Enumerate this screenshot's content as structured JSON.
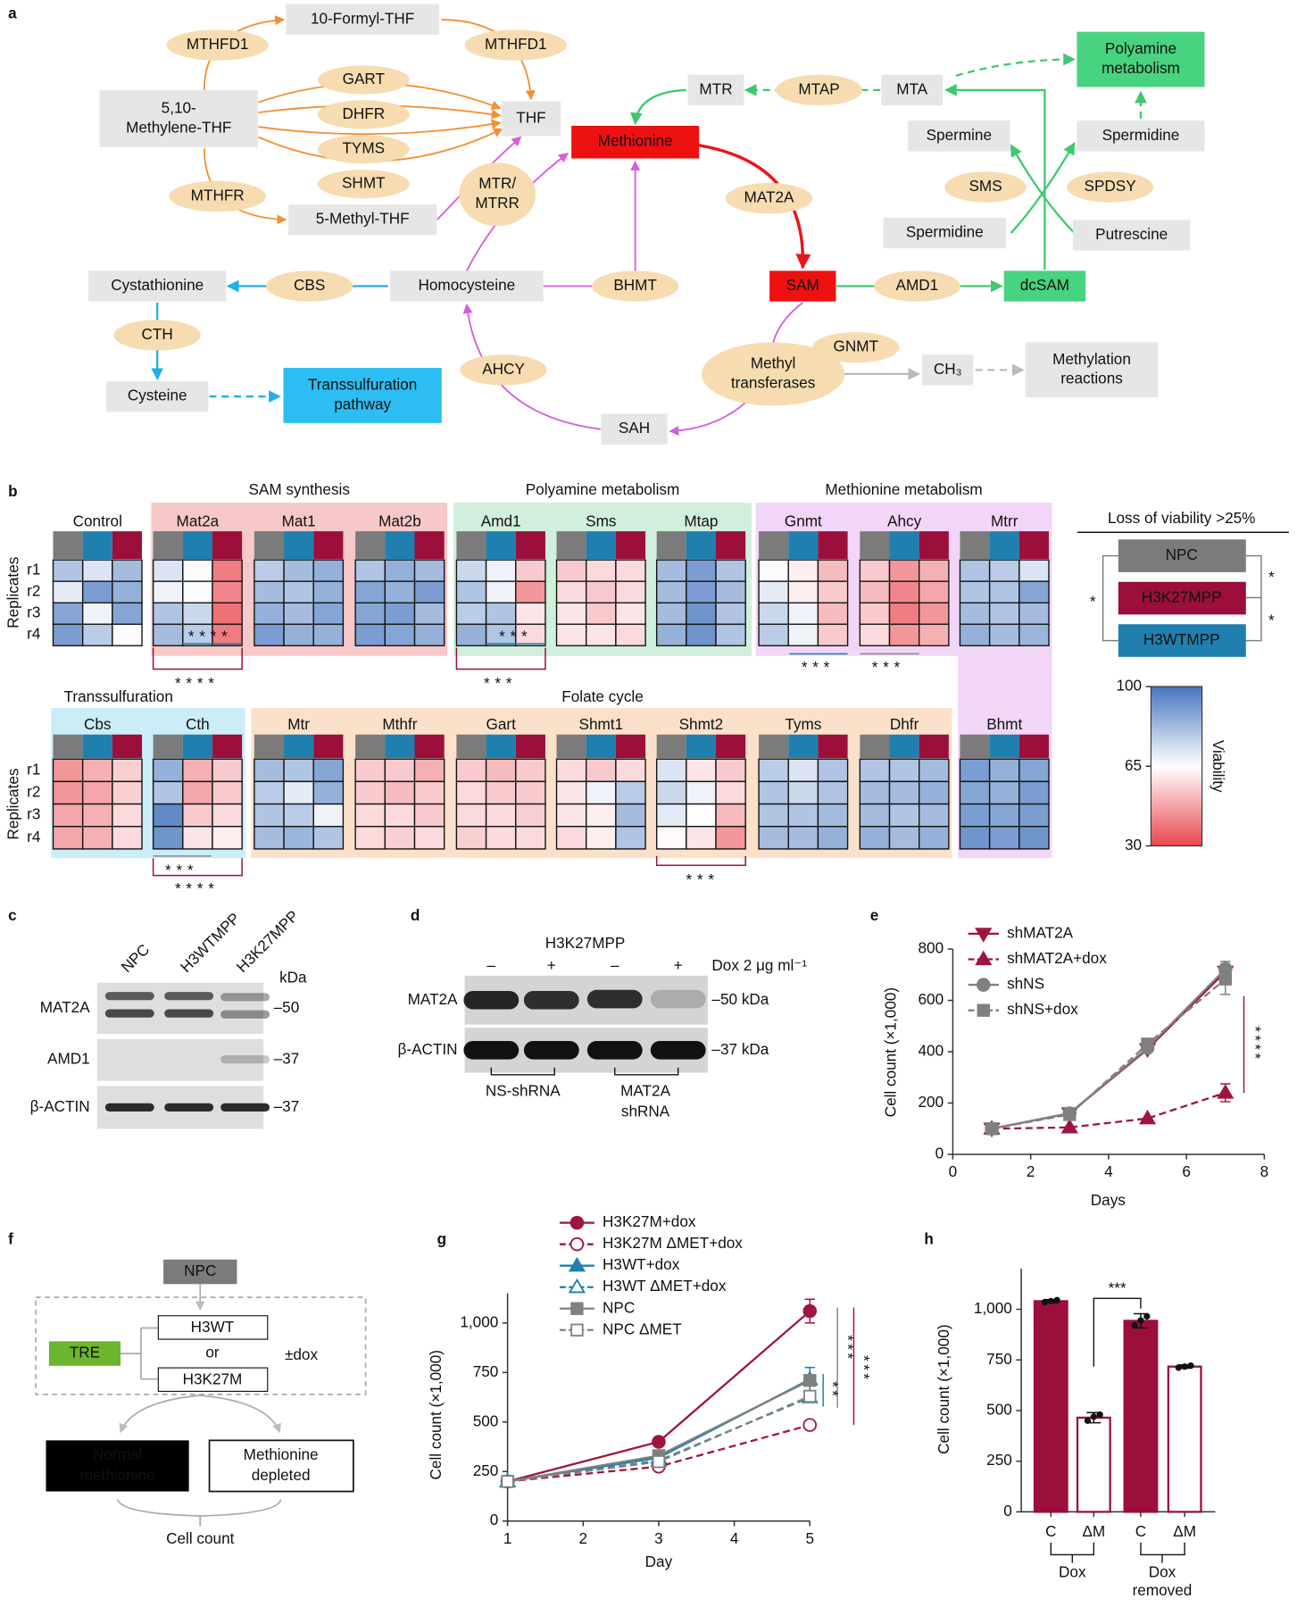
{
  "panel_labels": [
    "a",
    "b",
    "c",
    "d",
    "e",
    "f",
    "g",
    "h"
  ],
  "pathway": {
    "nodes": [
      {
        "lines": [
          "10-Formyl-THF"
        ]
      },
      {
        "lines": [
          "MTHFD1"
        ]
      },
      {
        "lines": [
          "MTHFD1"
        ]
      },
      {
        "lines": [
          "GART"
        ]
      },
      {
        "lines": [
          "5,10-",
          "Methylene-THF"
        ]
      },
      {
        "lines": [
          "DHFR"
        ]
      },
      {
        "lines": [
          "THF"
        ]
      },
      {
        "lines": [
          "TYMS"
        ]
      },
      {
        "lines": [
          "SHMT"
        ]
      },
      {
        "lines": [
          "MTHFR"
        ]
      },
      {
        "lines": [
          "5-Methyl-THF"
        ]
      },
      {
        "lines": [
          "MTR/",
          "MTRR"
        ]
      },
      {
        "lines": [
          "Methionine"
        ]
      },
      {
        "lines": [
          "MTR"
        ]
      },
      {
        "lines": [
          "MTAP"
        ]
      },
      {
        "lines": [
          "MTA"
        ]
      },
      {
        "lines": [
          "Polyamine",
          "metabolism"
        ]
      },
      {
        "lines": [
          "Spermine"
        ]
      },
      {
        "lines": [
          "Spermidine"
        ]
      },
      {
        "lines": [
          "MAT2A"
        ]
      },
      {
        "lines": [
          "SMS"
        ]
      },
      {
        "lines": [
          "SPDSY"
        ]
      },
      {
        "lines": [
          "Spermidine"
        ]
      },
      {
        "lines": [
          "Putrescine"
        ]
      },
      {
        "lines": [
          "Cystathionine"
        ]
      },
      {
        "lines": [
          "CBS"
        ]
      },
      {
        "lines": [
          "Homocysteine"
        ]
      },
      {
        "lines": [
          "BHMT"
        ]
      },
      {
        "lines": [
          "SAM"
        ]
      },
      {
        "lines": [
          "AMD1"
        ]
      },
      {
        "lines": [
          "dcSAM"
        ]
      },
      {
        "lines": [
          "CTH"
        ]
      },
      {
        "lines": [
          "GNMT"
        ]
      },
      {
        "lines": [
          "Methyl",
          "transferases"
        ]
      },
      {
        "lines": [
          "CH₃"
        ]
      },
      {
        "lines": [
          "Methylation",
          "reactions"
        ]
      },
      {
        "lines": [
          "AHCY"
        ]
      },
      {
        "lines": [
          "Cysteine"
        ]
      },
      {
        "lines": [
          "Transsulfuration",
          "pathway"
        ]
      },
      {
        "lines": [
          "SAH"
        ]
      }
    ]
  },
  "heatmap": {
    "groups": [
      "SAM synthesis",
      "Polyamine metabolism",
      "Methionine metabolism",
      "Transsulfuration",
      "Folate cycle"
    ],
    "rows": [
      "r1",
      "r2",
      "r3",
      "r4"
    ],
    "row_axis": "Replicates",
    "column_colors": [
      "#7b7b7b",
      "#1f7fae",
      "#9b0f3a"
    ],
    "genes": [
      {
        "name": "Control",
        "values": [
          [
            80,
            72,
            82
          ],
          [
            70,
            90,
            85
          ],
          [
            88,
            68,
            88
          ],
          [
            90,
            78,
            66
          ]
        ]
      },
      {
        "name": "Mat2a",
        "values": [
          [
            72,
            66,
            40
          ],
          [
            68,
            66,
            42
          ],
          [
            80,
            75,
            38
          ],
          [
            82,
            78,
            40
          ]
        ]
      },
      {
        "name": "Mat1",
        "values": [
          [
            78,
            82,
            85
          ],
          [
            82,
            80,
            85
          ],
          [
            85,
            82,
            88
          ],
          [
            90,
            85,
            85
          ]
        ]
      },
      {
        "name": "Mat2b",
        "values": [
          [
            80,
            85,
            82
          ],
          [
            88,
            85,
            90
          ],
          [
            88,
            90,
            82
          ],
          [
            90,
            88,
            85
          ]
        ]
      },
      {
        "name": "Amd1",
        "values": [
          [
            75,
            68,
            55
          ],
          [
            80,
            68,
            45
          ],
          [
            78,
            80,
            60
          ],
          [
            85,
            80,
            58
          ]
        ]
      },
      {
        "name": "Sms",
        "values": [
          [
            55,
            58,
            58
          ],
          [
            58,
            55,
            58
          ],
          [
            60,
            55,
            60
          ],
          [
            60,
            60,
            58
          ]
        ]
      },
      {
        "name": "Mtap",
        "values": [
          [
            82,
            90,
            80
          ],
          [
            82,
            90,
            82
          ],
          [
            82,
            92,
            80
          ],
          [
            85,
            92,
            80
          ]
        ]
      },
      {
        "name": "Gnmt",
        "values": [
          [
            66,
            62,
            52
          ],
          [
            70,
            62,
            55
          ],
          [
            75,
            68,
            52
          ],
          [
            78,
            68,
            55
          ]
        ]
      },
      {
        "name": "Ahcy",
        "values": [
          [
            55,
            45,
            50
          ],
          [
            52,
            42,
            48
          ],
          [
            55,
            40,
            45
          ],
          [
            58,
            45,
            50
          ]
        ]
      },
      {
        "name": "Mtrr",
        "values": [
          [
            80,
            78,
            72
          ],
          [
            80,
            80,
            88
          ],
          [
            82,
            80,
            82
          ],
          [
            85,
            82,
            84
          ]
        ]
      },
      {
        "name": "Cbs",
        "values": [
          [
            45,
            50,
            56
          ],
          [
            45,
            48,
            56
          ],
          [
            48,
            50,
            58
          ],
          [
            48,
            50,
            58
          ]
        ]
      },
      {
        "name": "Cth",
        "values": [
          [
            85,
            50,
            55
          ],
          [
            80,
            48,
            55
          ],
          [
            95,
            55,
            58
          ],
          [
            92,
            60,
            62
          ]
        ]
      },
      {
        "name": "Mtr",
        "values": [
          [
            82,
            80,
            88
          ],
          [
            78,
            70,
            85
          ],
          [
            80,
            78,
            68
          ],
          [
            82,
            84,
            80
          ]
        ]
      },
      {
        "name": "Mthfr",
        "values": [
          [
            55,
            55,
            50
          ],
          [
            55,
            52,
            55
          ],
          [
            58,
            58,
            55
          ],
          [
            58,
            56,
            58
          ]
        ]
      },
      {
        "name": "Gart",
        "values": [
          [
            55,
            52,
            55
          ],
          [
            58,
            55,
            55
          ],
          [
            58,
            58,
            56
          ],
          [
            56,
            58,
            58
          ]
        ]
      },
      {
        "name": "Shmt1",
        "values": [
          [
            58,
            55,
            58
          ],
          [
            60,
            68,
            78
          ],
          [
            60,
            62,
            82
          ],
          [
            58,
            62,
            80
          ]
        ]
      },
      {
        "name": "Shmt2",
        "values": [
          [
            72,
            60,
            55
          ],
          [
            75,
            68,
            58
          ],
          [
            70,
            65,
            52
          ],
          [
            64,
            60,
            45
          ]
        ]
      },
      {
        "name": "Tyms",
        "values": [
          [
            78,
            72,
            80
          ],
          [
            80,
            75,
            80
          ],
          [
            80,
            80,
            82
          ],
          [
            82,
            82,
            85
          ]
        ]
      },
      {
        "name": "Dhfr",
        "values": [
          [
            80,
            80,
            82
          ],
          [
            82,
            82,
            85
          ],
          [
            82,
            80,
            82
          ],
          [
            85,
            82,
            85
          ]
        ]
      },
      {
        "name": "Bhmt",
        "values": [
          [
            90,
            85,
            88
          ],
          [
            88,
            85,
            90
          ],
          [
            90,
            88,
            90
          ],
          [
            92,
            90,
            92
          ]
        ]
      }
    ],
    "significance": [
      {
        "text": "****",
        "color": "#1f7fae"
      },
      {
        "text": "****",
        "color": "#9b0f3a"
      },
      {
        "text": "***",
        "color": "#1f7fae"
      },
      {
        "text": "***",
        "color": "#9b0f3a"
      },
      {
        "text": "***",
        "color": "#1f7fae"
      },
      {
        "text": "***",
        "color": "#888888"
      },
      {
        "text": "***",
        "color": "#888888"
      },
      {
        "text": "****",
        "color": "#9b0f3a"
      },
      {
        "text": "***",
        "color": "#9b0f3a"
      }
    ],
    "legend": {
      "title": "Loss of viability >25%",
      "lines": [
        "NPC",
        "H3K27MPP",
        "H3WTMPP"
      ],
      "stars": [
        {
          "text": "*",
          "color": "#9b0f3a"
        },
        {
          "text": "*",
          "color": "#1f7fae"
        },
        {
          "text": "*",
          "color": "#888888"
        }
      ]
    },
    "colorbar": {
      "label": "Viability",
      "range": [
        30,
        100
      ],
      "ticks": [
        100,
        65,
        30
      ],
      "colors": [
        "#e8474f",
        "#ffffff",
        "#4676be"
      ]
    }
  },
  "blot_c": {
    "columns": [
      "NPC",
      "H3WTMPP",
      "H3K27MPP"
    ],
    "unit": "kDa",
    "rows": [
      "MAT2A",
      "AMD1",
      "β-ACTIN"
    ],
    "markers": [
      "–50",
      "–37",
      "–37"
    ]
  },
  "blot_d": {
    "title": "H3K27MPP",
    "dox": [
      "–",
      "+",
      "–",
      "+"
    ],
    "dox_label": "Dox 2 μg ml⁻¹",
    "rows": [
      "MAT2A",
      "β-ACTIN"
    ],
    "markers": [
      "–50 kDa",
      "–37 kDa"
    ],
    "groups": [
      [
        "NS-shRNA"
      ],
      [
        "MAT2A",
        "shRNA"
      ]
    ]
  },
  "schematic_f": {
    "source": "NPC",
    "promoter": "TRE",
    "options": [
      "H3WT",
      "or",
      "H3K27M"
    ],
    "treatment": "±dox",
    "conditions": [
      [
        "Normal",
        "methionine"
      ],
      [
        "Methionine",
        "depleted"
      ]
    ],
    "readout": "Cell count"
  },
  "chart_data": [
    {
      "type": "line",
      "xlabel": "Days",
      "ylabel": "Cell count (×1,000)",
      "x": [
        1,
        3,
        5,
        7
      ],
      "xlim": [
        0,
        8
      ],
      "xticks": [
        0,
        2,
        4,
        6,
        8
      ],
      "ylim": [
        0,
        800
      ],
      "yticks": [
        0,
        200,
        400,
        600,
        800
      ],
      "series": [
        {
          "name": "shMAT2A",
          "color": "#a0153e",
          "marker": "triangle-down",
          "dashed": false,
          "filled": true,
          "values": [
            100,
            160,
            410,
            712
          ],
          "errors": [
            null,
            null,
            null,
            25
          ]
        },
        {
          "name": "shMAT2A+dox",
          "color": "#a0153e",
          "marker": "triangle-up",
          "dashed": true,
          "filled": true,
          "values": [
            100,
            105,
            140,
            240
          ],
          "errors": [
            null,
            null,
            null,
            35
          ]
        },
        {
          "name": "shNS",
          "color": "#808080",
          "marker": "circle",
          "dashed": false,
          "filled": true,
          "values": [
            100,
            160,
            415,
            722
          ],
          "errors": [
            null,
            null,
            null,
            30
          ]
        },
        {
          "name": "shNS+dox",
          "color": "#808080",
          "marker": "square",
          "dashed": true,
          "filled": true,
          "values": [
            100,
            155,
            430,
            683
          ],
          "errors": [
            null,
            null,
            null,
            60
          ]
        }
      ],
      "annotations": [
        {
          "text": "****",
          "color": "#a0153e"
        }
      ]
    },
    {
      "type": "line",
      "xlabel": "Day",
      "ylabel": "Cell count (×1,000)",
      "x": [
        1,
        3,
        5
      ],
      "xlim": [
        1,
        5
      ],
      "xticks": [
        1,
        2,
        3,
        4,
        5
      ],
      "ylim": [
        0,
        1150
      ],
      "yticks": [
        0,
        250,
        500,
        750,
        {
          "value": 1000,
          "label": "1,000"
        }
      ],
      "series": [
        {
          "name": "H3K27M+dox",
          "color": "#a0153e",
          "marker": "circle",
          "dashed": false,
          "filled": true,
          "values": [
            200,
            400,
            1060
          ],
          "errors": [
            null,
            null,
            60
          ]
        },
        {
          "name": "H3K27M ΔMET+dox",
          "color": "#a0153e",
          "marker": "circle",
          "dashed": true,
          "filled": false,
          "values": [
            200,
            275,
            485
          ],
          "errors": [
            null,
            null,
            null
          ]
        },
        {
          "name": "H3WT+dox",
          "color": "#1f7fae",
          "marker": "triangle-up",
          "dashed": false,
          "filled": true,
          "values": [
            200,
            320,
            715
          ],
          "errors": [
            null,
            null,
            60
          ]
        },
        {
          "name": "H3WT ΔMET+dox",
          "color": "#1f7fae",
          "marker": "triangle-up",
          "dashed": true,
          "filled": false,
          "values": [
            200,
            305,
            625
          ],
          "errors": [
            null,
            null,
            null
          ]
        },
        {
          "name": "NPC",
          "color": "#808080",
          "marker": "square",
          "dashed": false,
          "filled": true,
          "values": [
            200,
            330,
            710
          ],
          "errors": [
            null,
            null,
            null
          ]
        },
        {
          "name": "NPC ΔMET",
          "color": "#808080",
          "marker": "square",
          "dashed": true,
          "filled": false,
          "values": [
            200,
            300,
            630
          ],
          "errors": [
            null,
            null,
            null
          ]
        }
      ],
      "annotations": [
        {
          "text": "***",
          "color": "#888888"
        },
        {
          "text": "**",
          "color": "#1f7fae"
        },
        {
          "text": "***",
          "color": "#a0153e"
        }
      ]
    },
    {
      "type": "bar",
      "ylabel": "Cell count (×1,000)",
      "categories": [
        "C",
        "ΔM",
        "C",
        "ΔM"
      ],
      "values": [
        1040,
        465,
        943,
        717
      ],
      "errors": [
        8,
        25,
        35,
        8
      ],
      "points": [
        [
          1035,
          1040,
          1045
        ],
        [
          450,
          470,
          480
        ],
        [
          920,
          945,
          965
        ],
        [
          712,
          717,
          722
        ]
      ],
      "filled": [
        true,
        false,
        true,
        false
      ],
      "color": "#9b0f3a",
      "ylim": [
        0,
        1200
      ],
      "yticks": [
        0,
        250,
        500,
        750,
        {
          "value": 1000,
          "label": "1,000"
        }
      ],
      "group_labels": [
        [
          "Dox"
        ],
        [
          "Dox",
          "removed"
        ]
      ],
      "annotations": [
        {
          "text": "***",
          "color": "#111111"
        }
      ]
    }
  ]
}
